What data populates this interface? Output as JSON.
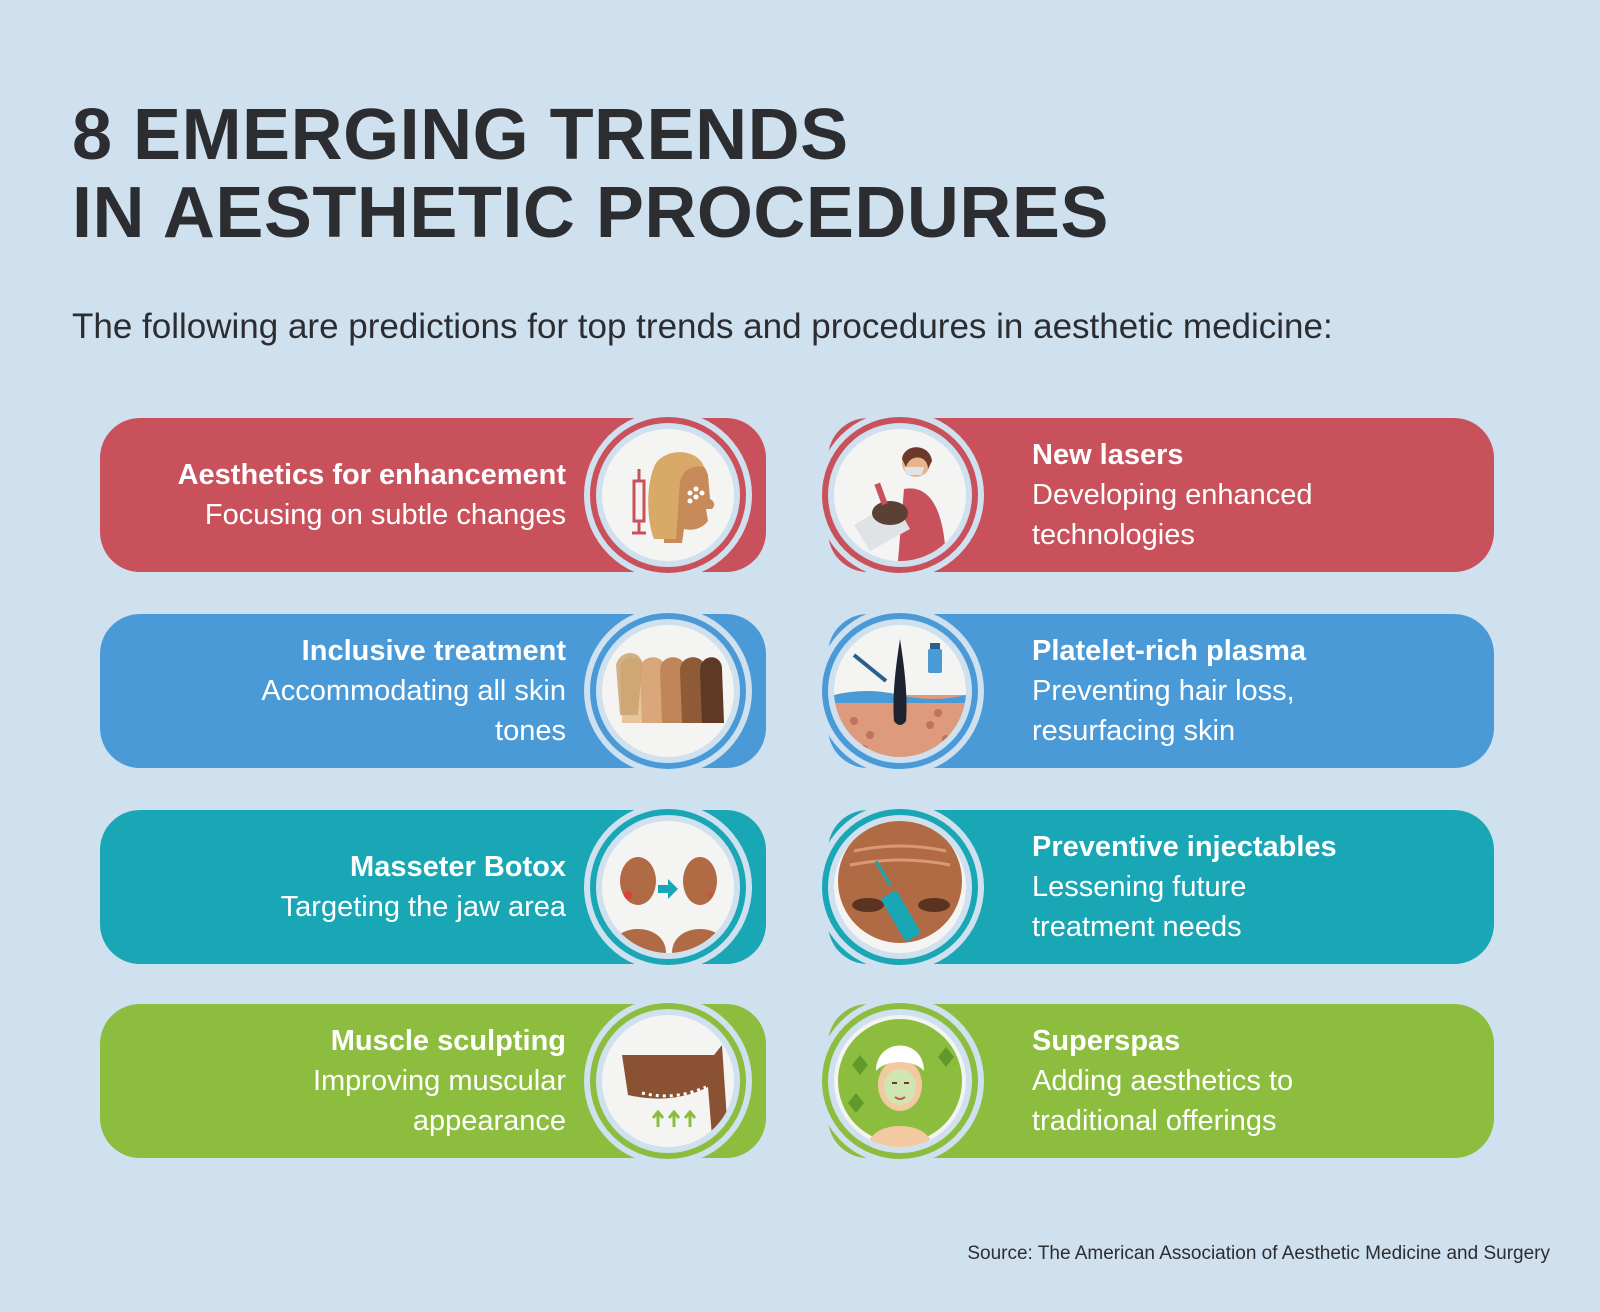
{
  "title": {
    "line1": "8 EMERGING TRENDS",
    "line2": "IN AESTHETIC PROCEDURES"
  },
  "subtitle": "The following are predictions for top trends and procedures in aesthetic medicine:",
  "colors": {
    "background": "#cfe0ee",
    "red": "#c8515b",
    "blue": "#4b9ad8",
    "teal": "#19a7b5",
    "green": "#8cbd3f",
    "text": "#2c2d30"
  },
  "trends": [
    {
      "name": "Aesthetics for enhancement",
      "description": [
        "Focusing on subtle changes"
      ],
      "icon": "face-injection-icon",
      "color": "red"
    },
    {
      "name": "New lasers",
      "description": [
        "Developing enhanced",
        "technologies"
      ],
      "icon": "laser-treatment-icon",
      "color": "red"
    },
    {
      "name": "Inclusive treatment",
      "description": [
        "Accommodating all skin",
        "tones"
      ],
      "icon": "skin-tones-icon",
      "color": "blue"
    },
    {
      "name": "Platelet-rich plasma",
      "description": [
        "Preventing hair loss,",
        "resurfacing skin"
      ],
      "icon": "hair-follicle-icon",
      "color": "blue"
    },
    {
      "name": "Masseter Botox",
      "description": [
        "Targeting the jaw area"
      ],
      "icon": "jaw-botox-icon",
      "color": "teal"
    },
    {
      "name": "Preventive injectables",
      "description": [
        "Lessening future",
        "treatment needs"
      ],
      "icon": "forehead-syringe-icon",
      "color": "teal"
    },
    {
      "name": "Muscle sculpting",
      "description": [
        "Improving muscular",
        "appearance"
      ],
      "icon": "arm-muscle-icon",
      "color": "green"
    },
    {
      "name": "Superspas",
      "description": [
        "Adding aesthetics to",
        "traditional offerings"
      ],
      "icon": "spa-face-mask-icon",
      "color": "green"
    }
  ],
  "source": "Source: The American Association of Aesthetic Medicine and Surgery"
}
